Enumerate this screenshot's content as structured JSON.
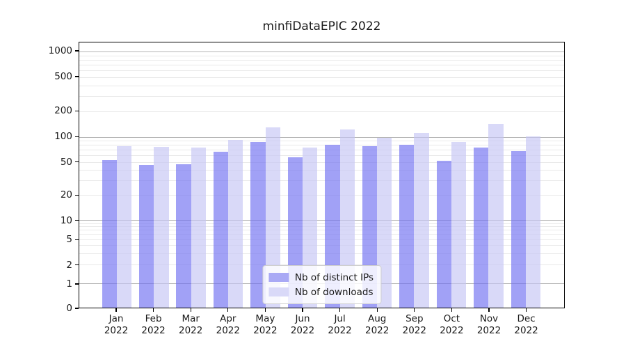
{
  "chart_data": {
    "type": "bar",
    "title": "minfiDataEPIC 2022",
    "categories": [
      "Jan 2022",
      "Feb 2022",
      "Mar 2022",
      "Apr 2022",
      "May 2022",
      "Jun 2022",
      "Jul 2022",
      "Aug 2022",
      "Sep 2022",
      "Oct 2022",
      "Nov 2022",
      "Dec 2022"
    ],
    "series": [
      {
        "name": "Nb of distinct IPs",
        "color": "#a9a9f5",
        "fill": "rgba(113,113,241,0.66)",
        "values": [
          53,
          46,
          47,
          66,
          87,
          57,
          80,
          78,
          80,
          52,
          75,
          67
        ]
      },
      {
        "name": "Nb of downloads",
        "color": "#d9d9f8",
        "fill": "rgba(197,197,245,0.66)",
        "values": [
          78,
          76,
          74,
          92,
          130,
          74,
          121,
          97,
          112,
          87,
          142,
          102
        ]
      }
    ],
    "xlabel": "",
    "ylabel": "",
    "yscale": "symlog",
    "y_ticks": [
      0,
      1,
      2,
      5,
      10,
      20,
      50,
      100,
      200,
      500,
      1000
    ],
    "ylim": [
      0,
      1270
    ],
    "scale_anchors": [
      [
        0,
        0
      ],
      [
        1,
        0.0914
      ],
      [
        10,
        0.3298
      ],
      [
        100,
        0.6441
      ],
      [
        1000,
        0.9661
      ]
    ],
    "grid": "horizontal major (decades) + minor (log subdivisions)",
    "grid_major_color": "#b4b4b4",
    "grid_minor_color": "#e9e9e9",
    "legend_position": "lower center"
  }
}
